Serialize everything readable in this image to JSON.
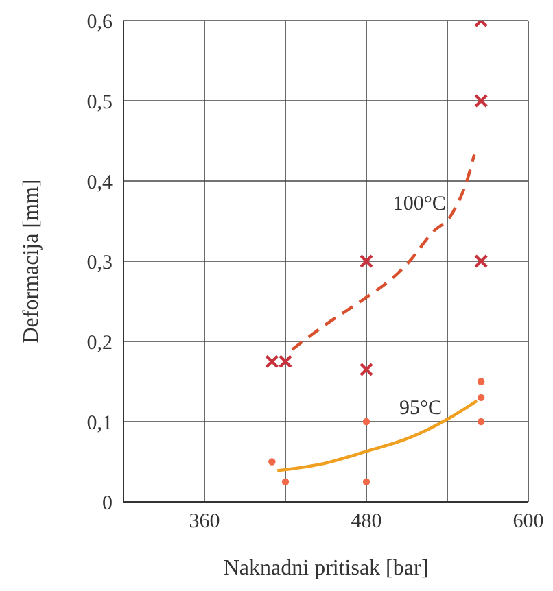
{
  "chart_data": {
    "type": "scatter",
    "xlabel": "Naknadni pritisak [bar]",
    "ylabel": "Deformacija [mm]",
    "xlim": [
      300,
      600
    ],
    "xticks": [
      360,
      {
        "value": 420,
        "label": null
      },
      480,
      {
        "value": 540,
        "label": null
      },
      600
    ],
    "ylim": [
      0,
      0.6
    ],
    "yticks": [
      {
        "value": 0,
        "label": "0"
      },
      {
        "value": 0.1,
        "label": "0,1"
      },
      {
        "value": 0.2,
        "label": "0,2"
      },
      {
        "value": 0.3,
        "label": "0,3"
      },
      {
        "value": 0.4,
        "label": "0,4"
      },
      {
        "value": 0.5,
        "label": "0,5"
      },
      {
        "value": 0.6,
        "label": "0,6"
      }
    ],
    "grid": true,
    "legend": false,
    "series": [
      {
        "type": "scatter",
        "marker": "cross",
        "color": "#c8323c",
        "x": [
          410,
          420,
          480,
          480,
          565,
          565,
          565
        ],
        "values": [
          0.175,
          0.175,
          0.3,
          0.165,
          0.3,
          0.5,
          0.6
        ]
      },
      {
        "type": "scatter",
        "marker": "circle",
        "color": "#f06848",
        "x": [
          410,
          420,
          480,
          480,
          565,
          565,
          565
        ],
        "values": [
          0.05,
          0.025,
          0.1,
          0.025,
          0.15,
          0.13,
          0.1
        ]
      },
      {
        "type": "line",
        "line_style": "dashed",
        "marker": "none",
        "color": "#d9502f",
        "x": [
          425,
          449,
          480,
          498,
          512,
          529,
          543,
          555,
          560
        ],
        "values": [
          0.19,
          0.22,
          0.255,
          0.277,
          0.3,
          0.336,
          0.358,
          0.403,
          0.433
        ]
      },
      {
        "type": "line",
        "line_style": "solid",
        "marker": "none",
        "color": "#f0a020",
        "x": [
          414,
          449,
          480,
          512,
          540,
          562
        ],
        "values": [
          0.039,
          0.048,
          0.063,
          0.08,
          0.103,
          0.126
        ]
      }
    ],
    "annotations": [
      {
        "text": "100°C",
        "x": 543,
        "y": 0.358
      },
      {
        "text": "95°C",
        "x": 540,
        "y": 0.103
      }
    ]
  }
}
